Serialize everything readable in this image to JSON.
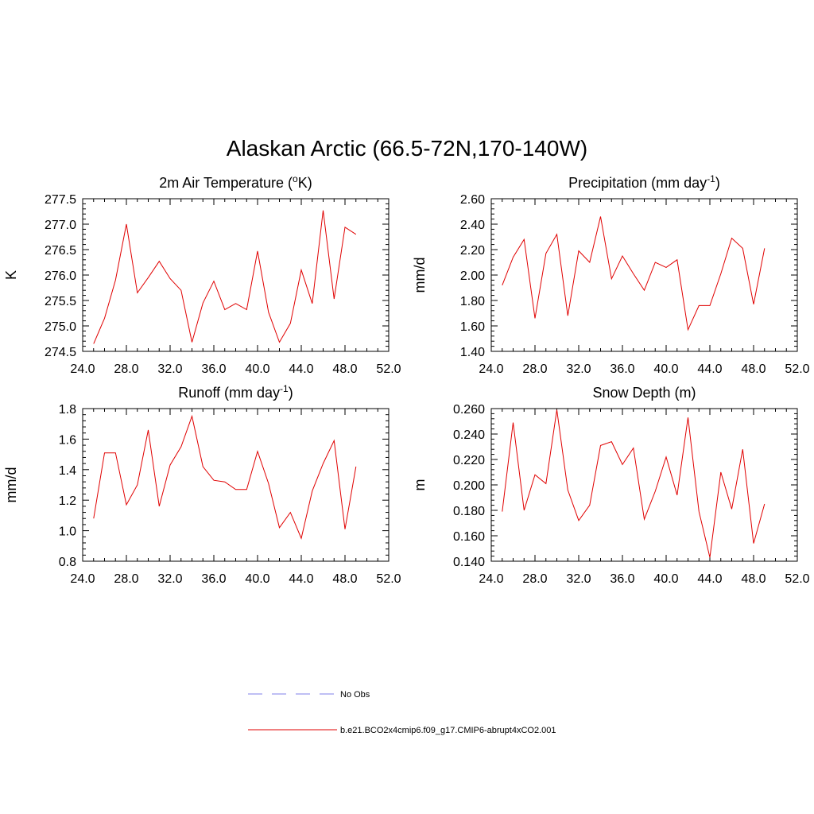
{
  "figure": {
    "title": "Alaskan Arctic (66.5-72N,170-140W)"
  },
  "colors": {
    "series": "#e00000",
    "obs": "#9999ee",
    "axis": "#000000"
  },
  "legend": {
    "items": [
      {
        "label": "No Obs",
        "style": "dashed",
        "color": "#9999ee"
      },
      {
        "label": "b.e21.BCO2x4cmip6.f09_g17.CMIP6-abrupt4xCO2.001",
        "style": "solid",
        "color": "#e00000"
      }
    ]
  },
  "chart_data": [
    {
      "type": "line",
      "title_text": "2m Air Temperature (",
      "title_sup": "o",
      "title_tail": "K)",
      "ylabel": "K",
      "xlim": [
        24,
        52
      ],
      "ylim": [
        274.5,
        277.5
      ],
      "xticks": [
        24,
        28,
        32,
        36,
        40,
        44,
        48,
        52
      ],
      "xtick_labels": [
        "24.0",
        "28.0",
        "32.0",
        "36.0",
        "40.0",
        "44.0",
        "48.0",
        "52.0"
      ],
      "yticks": [
        274.5,
        275.0,
        275.5,
        276.0,
        276.5,
        277.0,
        277.5
      ],
      "ytick_labels": [
        "274.5",
        "275.0",
        "275.5",
        "276.0",
        "276.5",
        "277.0",
        "277.5"
      ],
      "series": [
        {
          "x": [
            25,
            26,
            27,
            28,
            29,
            30,
            31,
            32,
            33,
            34,
            35,
            36,
            37,
            38,
            39,
            40,
            41,
            42,
            43,
            44,
            45,
            46,
            47,
            48,
            49
          ],
          "y": [
            274.65,
            275.15,
            275.9,
            277.0,
            275.65,
            275.95,
            276.27,
            275.93,
            275.7,
            274.68,
            275.45,
            275.88,
            275.32,
            275.44,
            275.32,
            276.47,
            275.27,
            274.68,
            275.05,
            276.1,
            275.44,
            277.27,
            275.53,
            276.94,
            276.8
          ]
        }
      ]
    },
    {
      "type": "line",
      "title_text": "Precipitation (mm day",
      "title_sup": "-1",
      "title_tail": ")",
      "ylabel": "mm/d",
      "xlim": [
        24,
        52
      ],
      "ylim": [
        1.4,
        2.6
      ],
      "xticks": [
        24,
        28,
        32,
        36,
        40,
        44,
        48,
        52
      ],
      "xtick_labels": [
        "24.0",
        "28.0",
        "32.0",
        "36.0",
        "40.0",
        "44.0",
        "48.0",
        "52.0"
      ],
      "yticks": [
        1.4,
        1.6,
        1.8,
        2.0,
        2.2,
        2.4,
        2.6
      ],
      "ytick_labels": [
        "1.40",
        "1.60",
        "1.80",
        "2.00",
        "2.20",
        "2.40",
        "2.60"
      ],
      "series": [
        {
          "x": [
            25,
            26,
            27,
            28,
            29,
            30,
            31,
            32,
            33,
            34,
            35,
            36,
            37,
            38,
            39,
            40,
            41,
            42,
            43,
            44,
            45,
            46,
            47,
            48,
            49
          ],
          "y": [
            1.92,
            2.14,
            2.28,
            1.66,
            2.17,
            2.32,
            1.68,
            2.19,
            2.1,
            2.46,
            1.97,
            2.15,
            2.01,
            1.88,
            2.1,
            2.06,
            2.12,
            1.57,
            1.76,
            1.76,
            2.01,
            2.29,
            2.21,
            1.77,
            2.21
          ]
        }
      ]
    },
    {
      "type": "line",
      "title_text": "Runoff (mm day",
      "title_sup": "-1",
      "title_tail": ")",
      "ylabel": "mm/d",
      "xlim": [
        24,
        52
      ],
      "ylim": [
        0.8,
        1.8
      ],
      "xticks": [
        24,
        28,
        32,
        36,
        40,
        44,
        48,
        52
      ],
      "xtick_labels": [
        "24.0",
        "28.0",
        "32.0",
        "36.0",
        "40.0",
        "44.0",
        "48.0",
        "52.0"
      ],
      "yticks": [
        0.8,
        1.0,
        1.2,
        1.4,
        1.6,
        1.8
      ],
      "ytick_labels": [
        "0.8",
        "1.0",
        "1.2",
        "1.4",
        "1.6",
        "1.8"
      ],
      "series": [
        {
          "x": [
            25,
            26,
            27,
            28,
            29,
            30,
            31,
            32,
            33,
            34,
            35,
            36,
            37,
            38,
            39,
            40,
            41,
            42,
            43,
            44,
            45,
            46,
            47,
            48,
            49
          ],
          "y": [
            1.08,
            1.51,
            1.51,
            1.17,
            1.3,
            1.66,
            1.16,
            1.43,
            1.55,
            1.75,
            1.42,
            1.33,
            1.32,
            1.27,
            1.27,
            1.52,
            1.31,
            1.02,
            1.12,
            0.95,
            1.26,
            1.44,
            1.59,
            1.01,
            1.42
          ]
        }
      ]
    },
    {
      "type": "line",
      "title_text": "Snow Depth (m)",
      "title_sup": "",
      "title_tail": "",
      "ylabel": "m",
      "xlim": [
        24,
        52
      ],
      "ylim": [
        0.14,
        0.26
      ],
      "xticks": [
        24,
        28,
        32,
        36,
        40,
        44,
        48,
        52
      ],
      "xtick_labels": [
        "24.0",
        "28.0",
        "32.0",
        "36.0",
        "40.0",
        "44.0",
        "48.0",
        "52.0"
      ],
      "yticks": [
        0.14,
        0.16,
        0.18,
        0.2,
        0.22,
        0.24,
        0.26
      ],
      "ytick_labels": [
        "0.140",
        "0.160",
        "0.180",
        "0.200",
        "0.220",
        "0.240",
        "0.260"
      ],
      "series": [
        {
          "x": [
            25,
            26,
            27,
            28,
            29,
            30,
            31,
            32,
            33,
            34,
            35,
            36,
            37,
            38,
            39,
            40,
            41,
            42,
            43,
            44,
            45,
            46,
            47,
            48,
            49
          ],
          "y": [
            0.179,
            0.249,
            0.18,
            0.208,
            0.201,
            0.259,
            0.196,
            0.172,
            0.184,
            0.231,
            0.234,
            0.216,
            0.229,
            0.173,
            0.195,
            0.222,
            0.192,
            0.253,
            0.179,
            0.143,
            0.21,
            0.181,
            0.228,
            0.154,
            0.185
          ]
        }
      ]
    }
  ]
}
